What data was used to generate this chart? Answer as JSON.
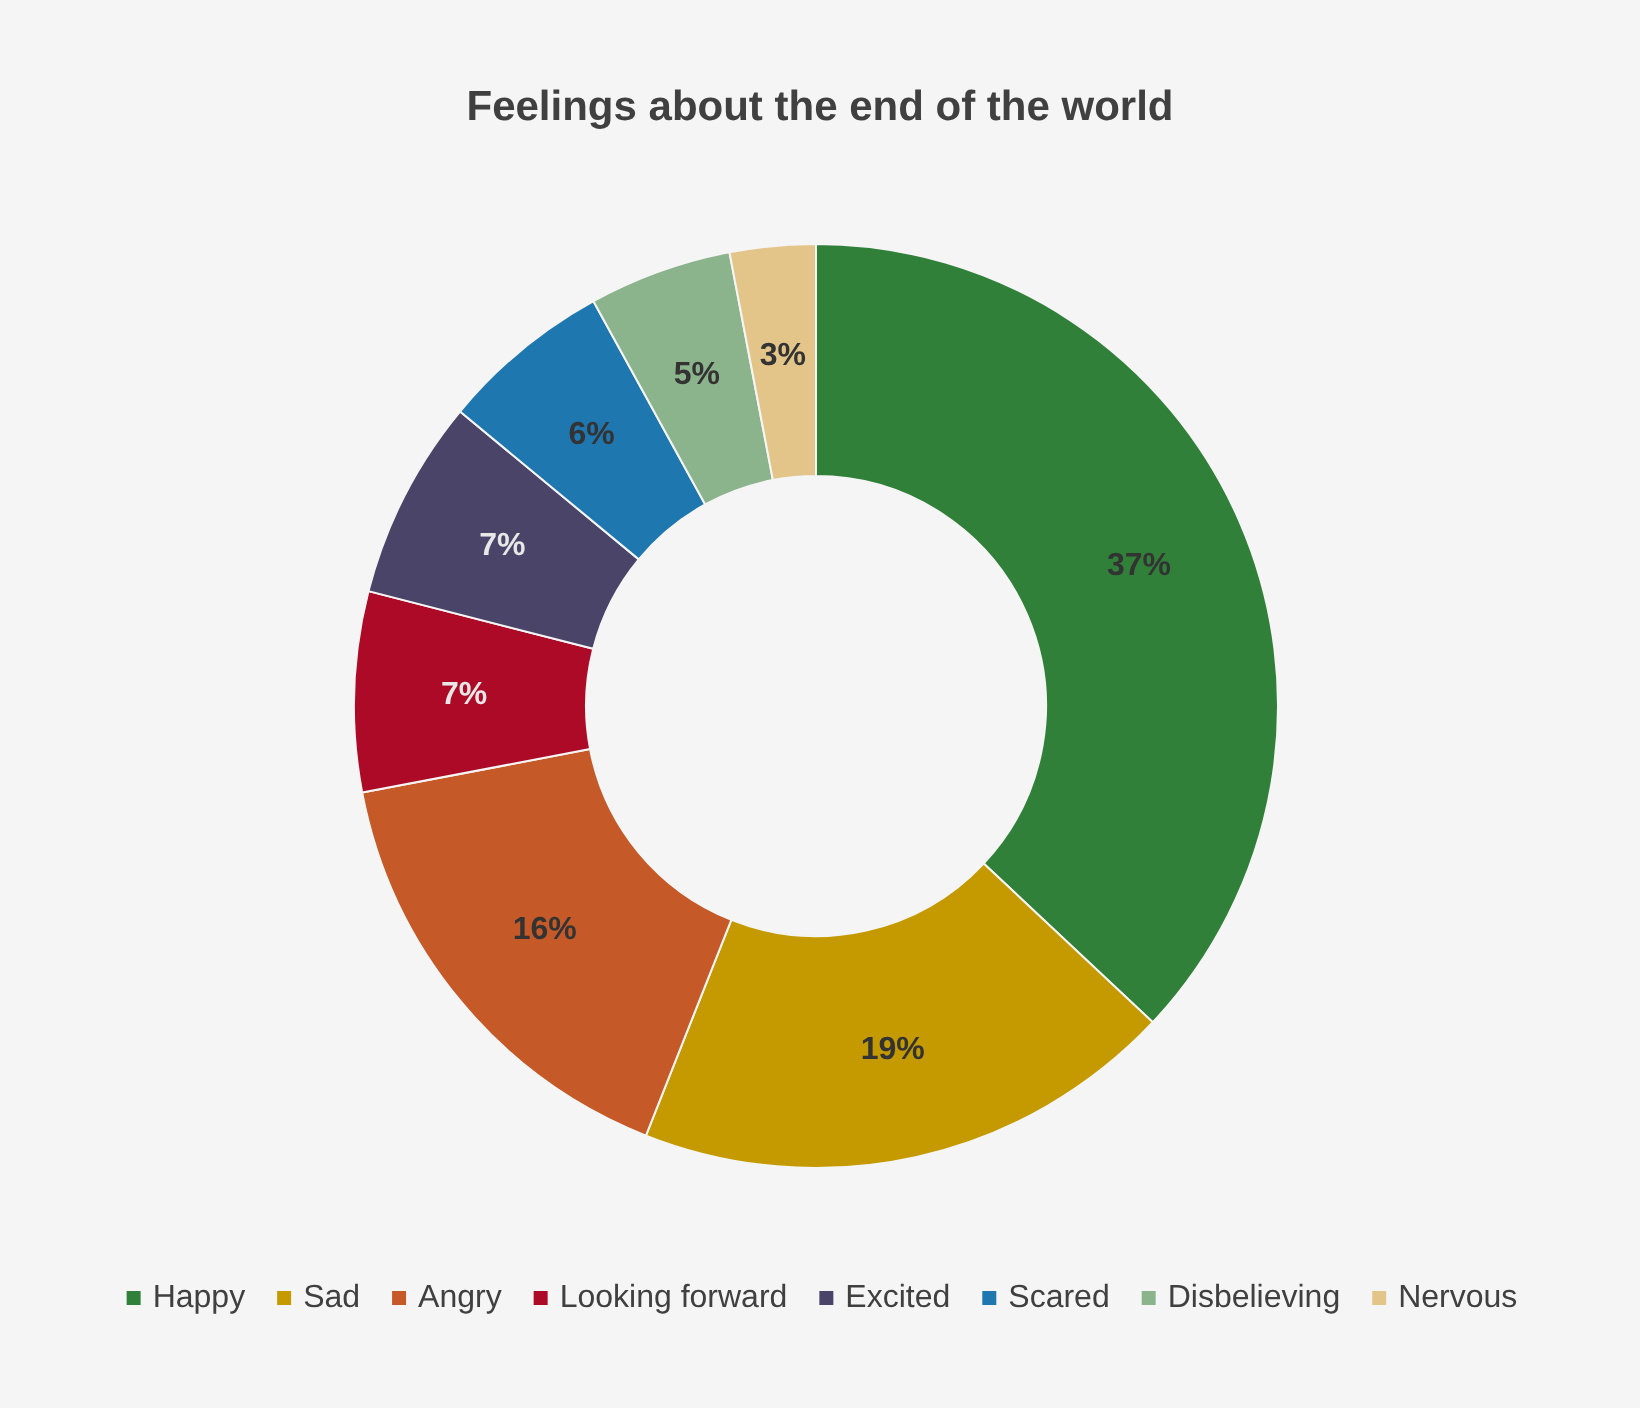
{
  "chart_data": {
    "type": "donut",
    "title": "Feelings about the end of the world",
    "categories": [
      "Happy",
      "Sad",
      "Angry",
      "Looking forward",
      "Excited",
      "Scared",
      "Disbelieving",
      "Nervous"
    ],
    "values": [
      37,
      19,
      16,
      7,
      7,
      6,
      5,
      3
    ],
    "colors": [
      "#31803a",
      "#c49a00",
      "#c55a28",
      "#ad0a28",
      "#4a4468",
      "#1f77b0",
      "#8cb48c",
      "#e3c58a"
    ],
    "value_labels": [
      "37%",
      "19%",
      "16%",
      "7%",
      "7%",
      "6%",
      "5%",
      "3%"
    ],
    "legend": "bottom"
  }
}
